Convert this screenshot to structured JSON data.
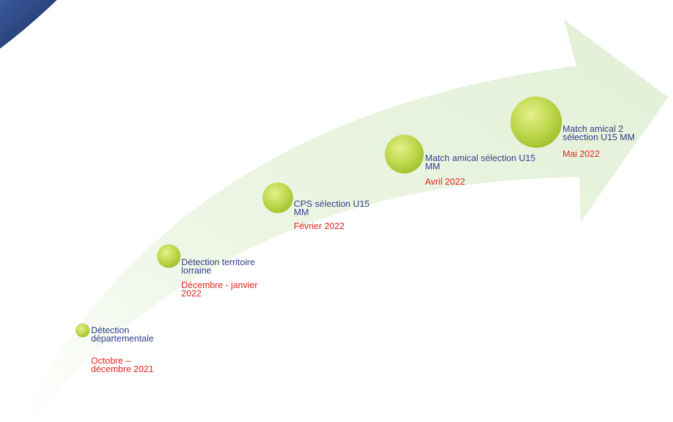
{
  "milestones": [
    {
      "label": "Détection départementale",
      "date": "Octobre – décembre 2021"
    },
    {
      "label": "Détection territoire lorraine",
      "date": "Décembre - janvier 2022"
    },
    {
      "label": "CPS sélection U15 MM",
      "date": "Février 2022"
    },
    {
      "label": "Match amical sélection U15 MM",
      "date": "Avril 2022"
    },
    {
      "label": "Match amical 2 sélection U15 MM",
      "date": "Mai 2022"
    }
  ]
}
